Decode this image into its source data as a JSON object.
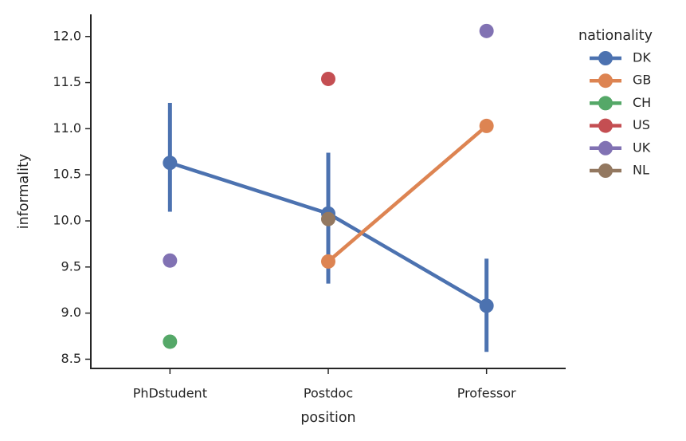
{
  "chart_data": {
    "type": "pointplot",
    "x_label": "position",
    "y_label": "informality",
    "categories": [
      "PhDstudent",
      "Postdoc",
      "Professor"
    ],
    "ylim": [
      8.4,
      12.24
    ],
    "yticks": [
      8.5,
      {
        "value": 9,
        "label": "9.0"
      },
      9.5,
      {
        "value": 10,
        "label": "10.0"
      },
      10.5,
      {
        "value": 11,
        "label": "11.0"
      },
      11.5,
      {
        "value": 12,
        "label": "12.0"
      }
    ],
    "legend_title": "nationality",
    "legend": "outside-right",
    "series": [
      {
        "name": "DK",
        "color": "#4c72b0",
        "values": [
          10.63,
          10.08,
          9.08
        ],
        "ci_low": [
          10.1,
          9.32,
          8.58
        ],
        "ci_high": [
          11.28,
          10.74,
          9.59
        ]
      },
      {
        "name": "GB",
        "color": "#dd8452",
        "values": [
          null,
          9.56,
          11.03
        ]
      },
      {
        "name": "CH",
        "color": "#55a868",
        "values": [
          8.69,
          null,
          null
        ]
      },
      {
        "name": "US",
        "color": "#c44e52",
        "values": [
          null,
          11.54,
          null
        ]
      },
      {
        "name": "UK",
        "color": "#8172b3",
        "values": [
          9.57,
          null,
          12.06
        ]
      },
      {
        "name": "NL",
        "color": "#937860",
        "values": [
          null,
          10.02,
          null
        ]
      }
    ]
  }
}
